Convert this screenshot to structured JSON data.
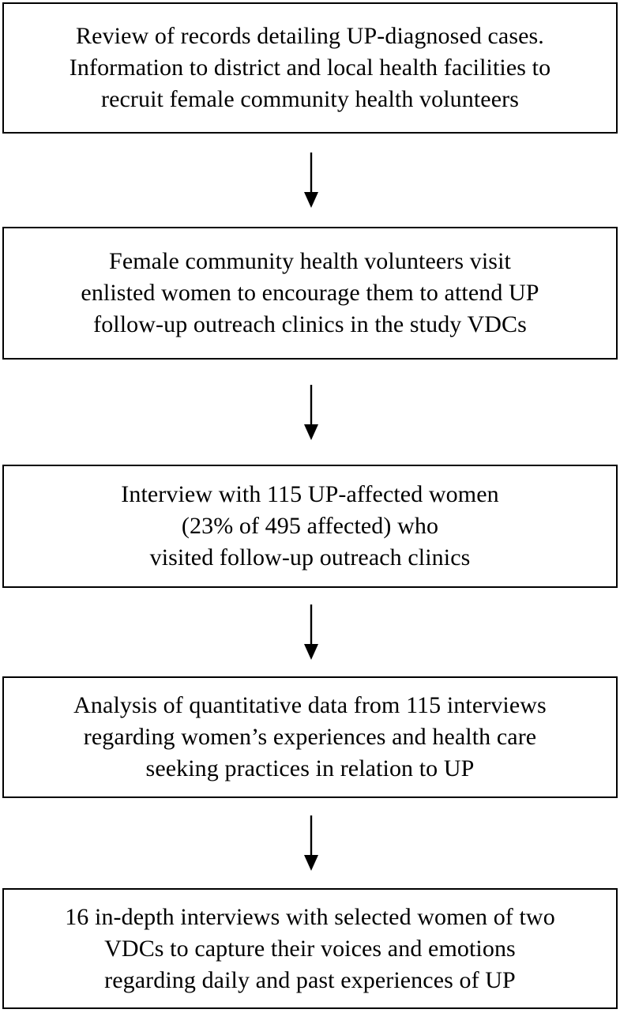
{
  "flowchart": {
    "steps": [
      {
        "lines": [
          "Review of records detailing UP-diagnosed cases.",
          "Information to district and local health facilities to",
          "recruit female community health volunteers"
        ]
      },
      {
        "lines": [
          "Female community health volunteers visit",
          "enlisted women to encourage them to attend UP",
          "follow-up outreach clinics in the study VDCs"
        ]
      },
      {
        "lines": [
          "Interview with 115 UP-affected women",
          "(23% of 495 affected) who",
          "visited follow-up outreach clinics"
        ]
      },
      {
        "lines": [
          "Analysis of quantitative data from 115 interviews",
          "regarding women’s experiences and health care",
          "seeking practices in relation to UP"
        ]
      },
      {
        "lines": [
          "16 in-depth interviews with selected women of two",
          "VDCs to capture their voices and emotions",
          "regarding daily and past experiences of UP"
        ]
      }
    ]
  }
}
